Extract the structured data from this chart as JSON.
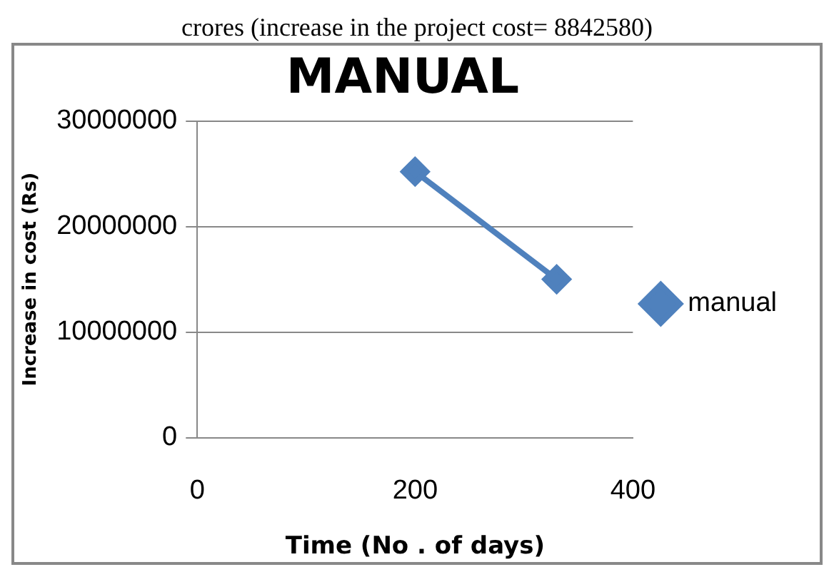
{
  "chart_data": {
    "type": "line",
    "title": "MANUAL",
    "annotations": [
      "crores (increase in the project cost= 8842580)"
    ],
    "xlabel": "Time (No . of days)",
    "ylabel": "Increase in cost (Rs)",
    "x": [
      200,
      330
    ],
    "series": [
      {
        "name": "manual",
        "color": "#4f81bd",
        "values": [
          25200000,
          15000000
        ]
      }
    ],
    "xlim": [
      0,
      400
    ],
    "xticks": [
      0,
      200,
      400
    ],
    "ylim": [
      0,
      30000000
    ],
    "yticks": [
      0,
      10000000,
      20000000,
      30000000
    ],
    "grid": "y",
    "legend": "right",
    "marker": "diamond",
    "line_style": "solid"
  }
}
